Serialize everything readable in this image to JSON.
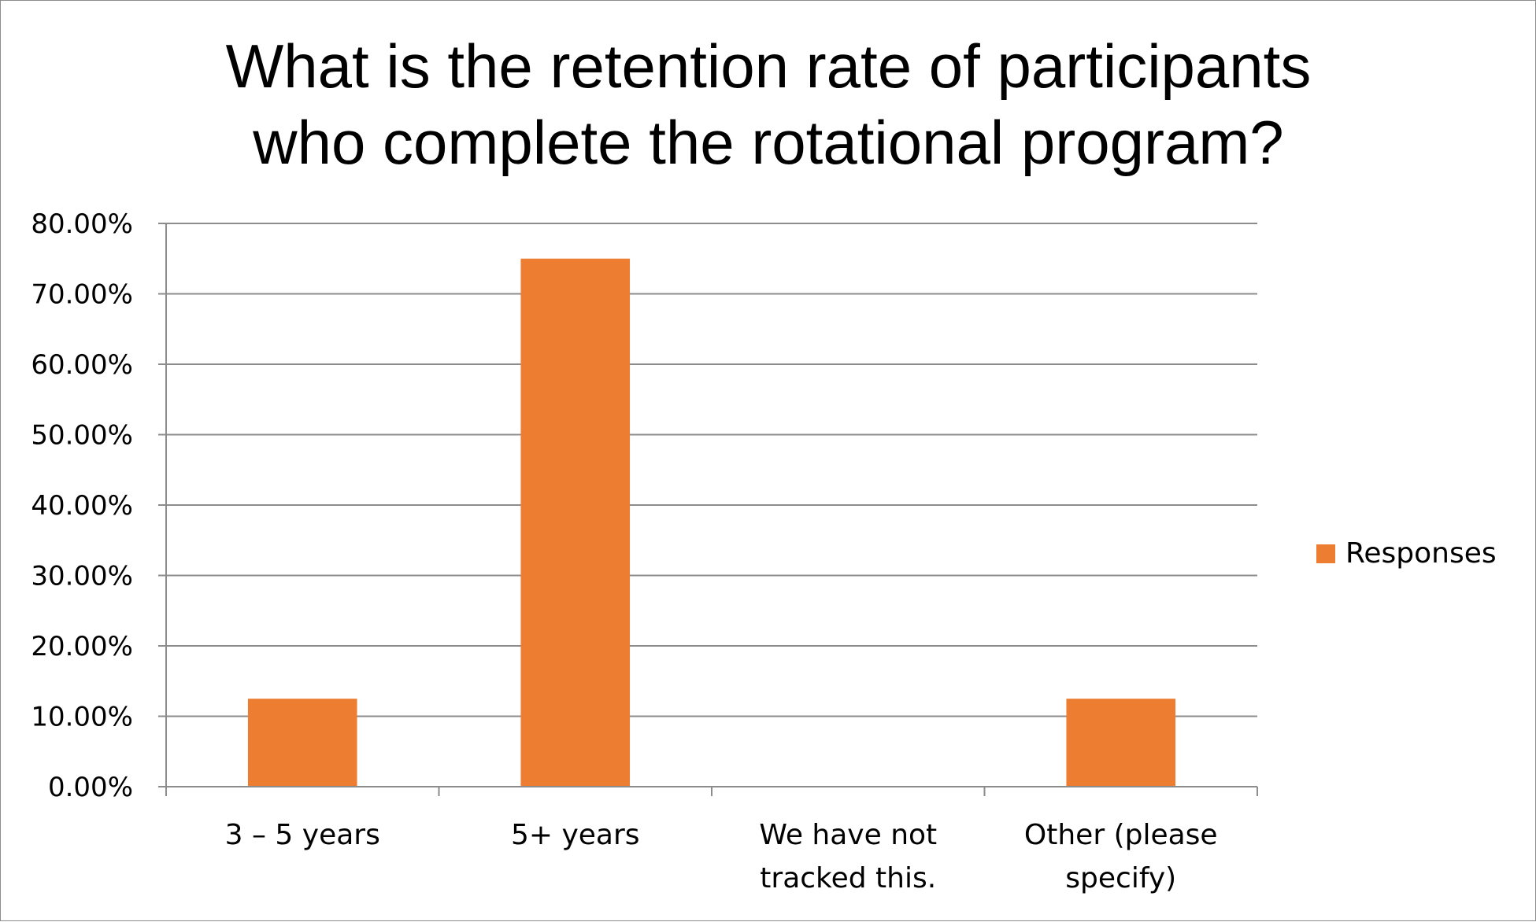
{
  "chart_data": {
    "type": "bar",
    "title_lines": [
      "What is the retention rate of participants",
      "who complete the rotational program?"
    ],
    "categories": [
      [
        "3 – 5 years"
      ],
      [
        "5+ years"
      ],
      [
        "We have not",
        "tracked this."
      ],
      [
        "Other (please",
        "specify)"
      ]
    ],
    "series": [
      {
        "name": "Responses",
        "color": "#ED7D31",
        "values": [
          12.5,
          75.0,
          0.0,
          12.5
        ]
      }
    ],
    "ylim": [
      0,
      80
    ],
    "y_ticks": [
      "0.00%",
      "10.00%",
      "20.00%",
      "30.00%",
      "40.00%",
      "50.00%",
      "60.00%",
      "70.00%",
      "80.00%"
    ],
    "grid": true,
    "legend": "right"
  },
  "colors": {
    "gridline": "#8c8c8c",
    "axis": "#8c8c8c"
  }
}
